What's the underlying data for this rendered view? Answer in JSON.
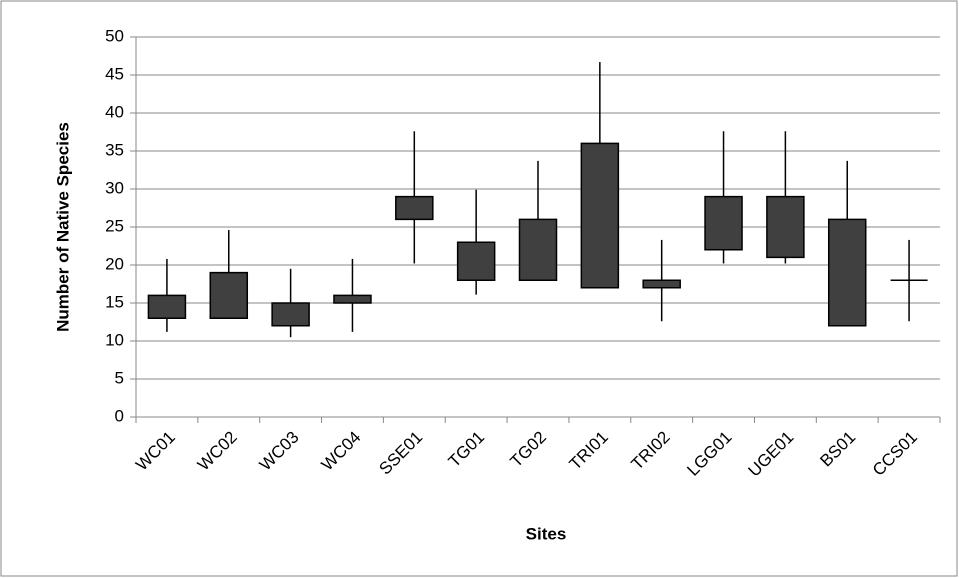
{
  "chart_data": {
    "type": "candlestick",
    "x_label": "Sites",
    "y_label": "Number of Native Species",
    "categories": [
      "WC01",
      "WC02",
      "WC03",
      "WC04",
      "SSE01",
      "TG01",
      "TG02",
      "TRI01",
      "TRI02",
      "LGG01",
      "UGE01",
      "BS01",
      "CCS01"
    ],
    "low": [
      11.2,
      13,
      10.5,
      11.2,
      20.2,
      16.1,
      18,
      17,
      12.6,
      20.2,
      20.2,
      12,
      12.6
    ],
    "box_low": [
      13,
      13,
      12,
      15,
      26,
      18,
      18,
      17,
      17,
      22,
      21,
      12,
      18
    ],
    "box_high": [
      16,
      19,
      15,
      16,
      29,
      23,
      26,
      36,
      18,
      29,
      29,
      26,
      18
    ],
    "high": [
      20.8,
      24.6,
      19.5,
      20.8,
      37.6,
      29.9,
      33.7,
      46.7,
      23.3,
      37.6,
      37.6,
      33.7,
      23.3
    ],
    "color": "#404040",
    "ylim": [
      0,
      50
    ],
    "yticks": [
      0,
      5,
      10,
      15,
      20,
      25,
      30,
      35,
      40,
      45,
      50
    ],
    "grid": true
  }
}
